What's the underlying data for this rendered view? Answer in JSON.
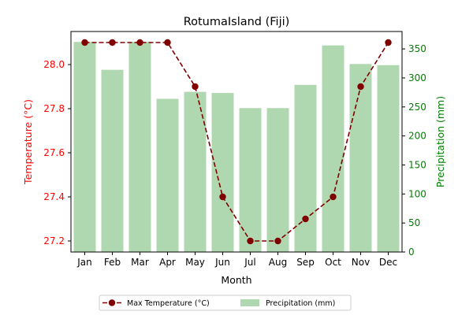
{
  "chart_data": {
    "type": "bar+line",
    "title": "RotumaIsland (Fiji)",
    "xlabel": "Month",
    "ylabel_left": "Temperature (°C)",
    "ylabel_right": "Precipitation (mm)",
    "categories": [
      "Jan",
      "Feb",
      "Mar",
      "Apr",
      "May",
      "Jun",
      "Jul",
      "Aug",
      "Sep",
      "Oct",
      "Nov",
      "Dec"
    ],
    "series": [
      {
        "name": "Max Temperature (°C)",
        "type": "line",
        "axis": "left",
        "color": "#800000",
        "values": [
          28.1,
          28.1,
          28.1,
          28.1,
          27.9,
          27.4,
          27.2,
          27.2,
          27.3,
          27.4,
          27.9,
          28.1
        ]
      },
      {
        "name": "Precipitation (mm)",
        "type": "bar",
        "axis": "right",
        "color": "#b0d8b0",
        "values": [
          362,
          314,
          362,
          264,
          276,
          274,
          248,
          248,
          288,
          356,
          324,
          322
        ]
      }
    ],
    "ylim_left": [
      27.15,
      28.15
    ],
    "yticks_left": [
      "27.2",
      "27.4",
      "27.6",
      "27.8",
      "28.0"
    ],
    "ylim_right": [
      0,
      380
    ],
    "yticks_right": [
      "0",
      "50",
      "100",
      "150",
      "200",
      "250",
      "300",
      "350"
    ],
    "left_axis_color": "#ff0000",
    "right_axis_color": "#008000",
    "grid": false,
    "legend_position": "bottom"
  }
}
